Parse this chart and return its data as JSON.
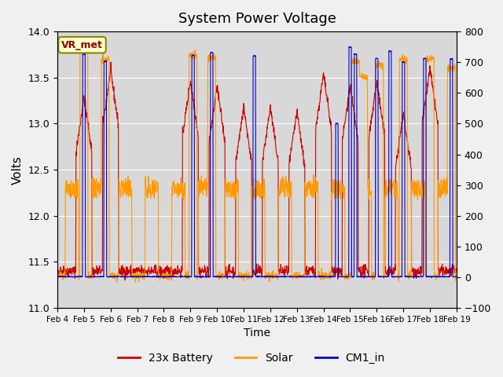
{
  "title": "System Power Voltage",
  "ylabel_left": "Volts",
  "xlabel": "Time",
  "ylim_left": [
    11.0,
    14.0
  ],
  "ylim_right": [
    -100,
    800
  ],
  "yticks_left": [
    11.0,
    11.5,
    12.0,
    12.5,
    13.0,
    13.5,
    14.0
  ],
  "yticks_right": [
    -100,
    0,
    100,
    200,
    300,
    400,
    500,
    600,
    700,
    800
  ],
  "xtick_labels": [
    "Feb 4",
    "Feb 5",
    "Feb 6",
    "Feb 7",
    "Feb 8",
    "Feb 9",
    "Feb 10",
    "Feb 11",
    "Feb 12",
    "Feb 13",
    "Feb 14",
    "Feb 15",
    "Feb 16",
    "Feb 17",
    "Feb 18",
    "Feb 19"
  ],
  "colors": {
    "battery": "#cc0000",
    "solar": "#ff9900",
    "cm1": "#0000cc",
    "background": "#e8e8e8",
    "plot_bg": "#d8d8d8"
  },
  "vr_met_label": "VR_met",
  "legend_labels": [
    "23x Battery",
    "Solar",
    "CM1_in"
  ],
  "n_points": 1500
}
